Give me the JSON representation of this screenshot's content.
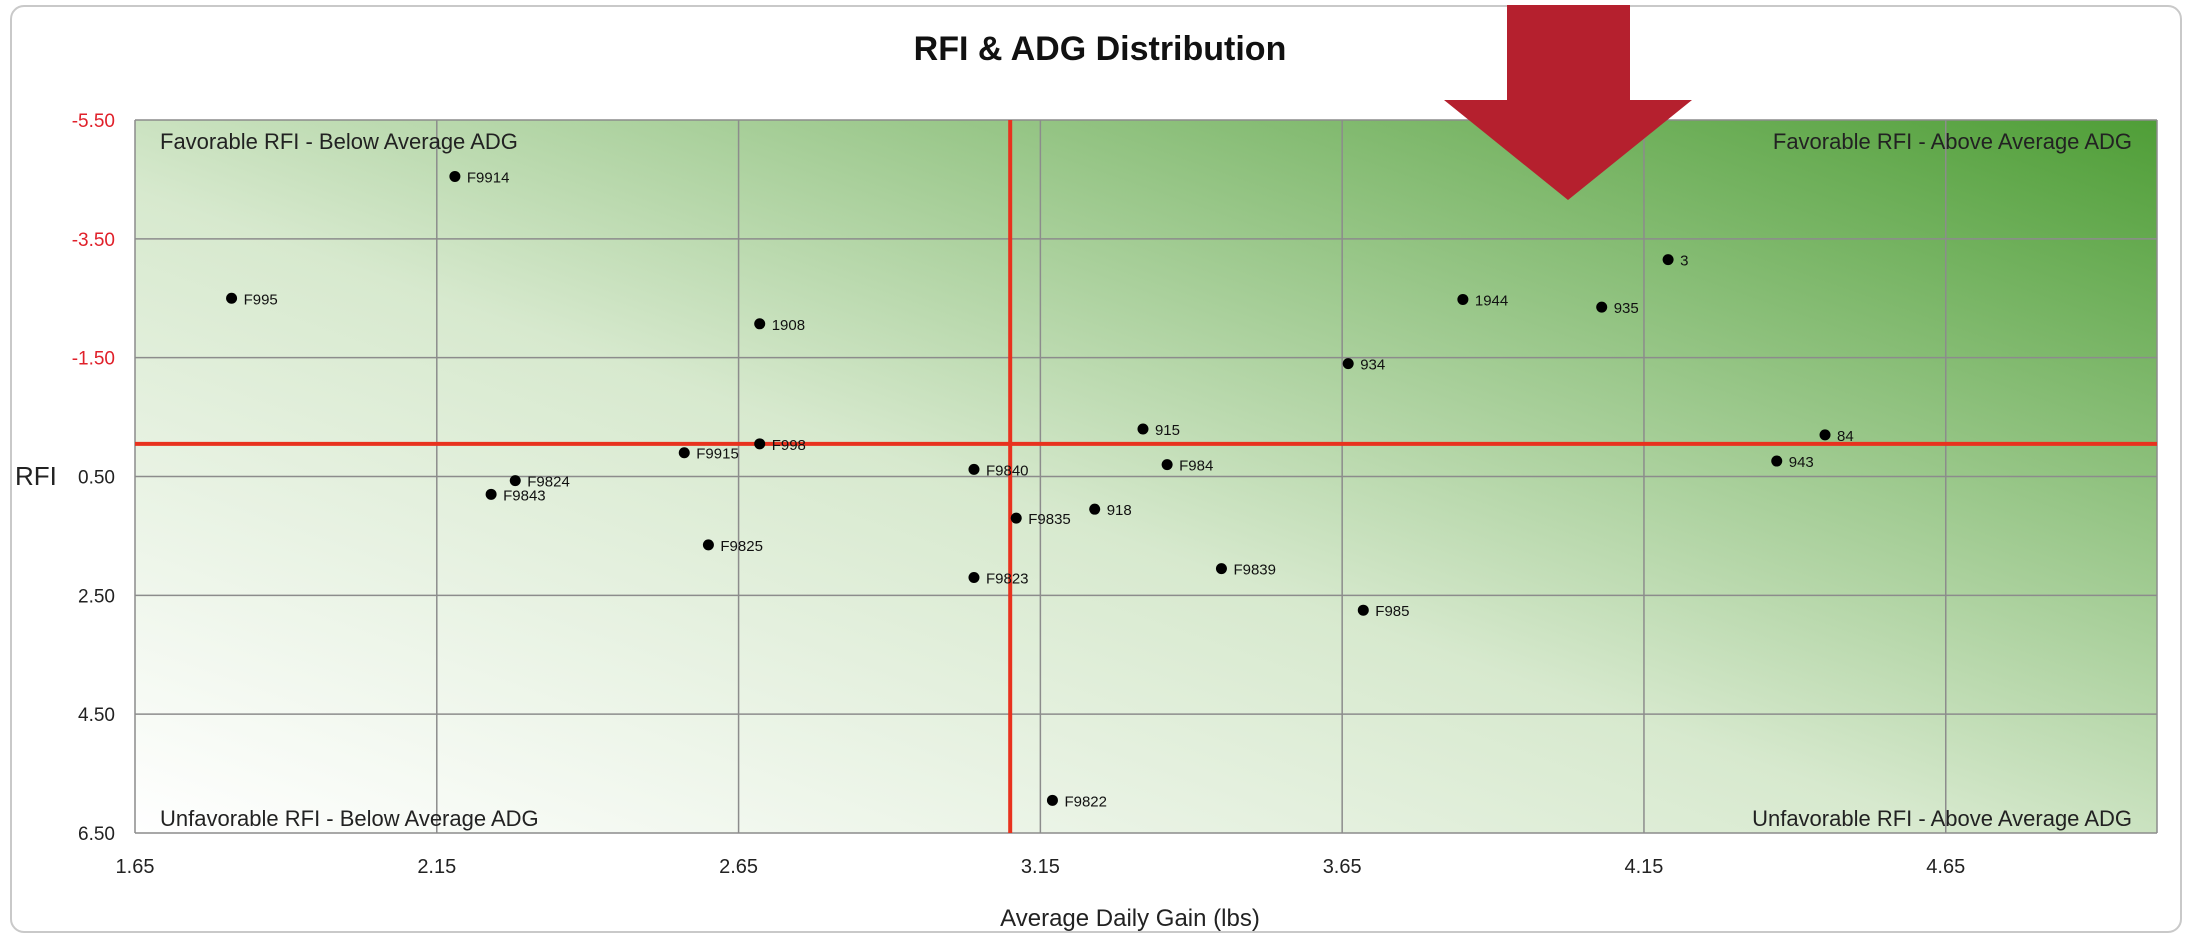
{
  "chart_data": {
    "type": "scatter",
    "title": "RFI & ADG Distribution",
    "xlabel": "Average Daily Gain (lbs)",
    "ylabel": "RFI",
    "xlim": [
      1.65,
      5.0
    ],
    "ylim": [
      -5.5,
      6.5
    ],
    "y_inverted": true,
    "x_ticks": [
      "1.65",
      "2.15",
      "2.65",
      "3.15",
      "3.65",
      "4.15",
      "4.65"
    ],
    "y_ticks": [
      "-5.50",
      "-3.50",
      "-1.50",
      "0.50",
      "2.50",
      "4.50",
      "6.50"
    ],
    "grid": true,
    "reference_lines": {
      "x": 3.1,
      "y": -0.05
    },
    "quadrant_labels": {
      "top_left": "Favorable RFI - Below Average ADG",
      "top_right": "Favorable RFI - Above Average ADG",
      "bottom_left": "Unfavorable RFI - Below Average ADG",
      "bottom_right": "Unfavorable RFI - Above Average ADG"
    },
    "points": [
      {
        "label": "F9914",
        "x": 2.18,
        "y": -4.55
      },
      {
        "label": "F995",
        "x": 1.81,
        "y": -2.5
      },
      {
        "label": "1908",
        "x": 2.685,
        "y": -2.07
      },
      {
        "label": "3",
        "x": 4.19,
        "y": -3.15
      },
      {
        "label": "1944",
        "x": 3.85,
        "y": -2.48
      },
      {
        "label": "935",
        "x": 4.08,
        "y": -2.35
      },
      {
        "label": "934",
        "x": 3.66,
        "y": -1.4
      },
      {
        "label": "915",
        "x": 3.32,
        "y": -0.3
      },
      {
        "label": "84",
        "x": 4.45,
        "y": -0.2
      },
      {
        "label": "943",
        "x": 4.37,
        "y": 0.24
      },
      {
        "label": "F9915",
        "x": 2.56,
        "y": 0.1
      },
      {
        "label": "F998",
        "x": 2.685,
        "y": -0.05
      },
      {
        "label": "F9840",
        "x": 3.04,
        "y": 0.38
      },
      {
        "label": "F984",
        "x": 3.36,
        "y": 0.3
      },
      {
        "label": "F9824",
        "x": 2.28,
        "y": 0.57
      },
      {
        "label": "F9843",
        "x": 2.24,
        "y": 0.8
      },
      {
        "label": "F9835",
        "x": 3.11,
        "y": 1.2
      },
      {
        "label": "918",
        "x": 3.24,
        "y": 1.05
      },
      {
        "label": "F9825",
        "x": 2.6,
        "y": 1.65
      },
      {
        "label": "F9839",
        "x": 3.45,
        "y": 2.05
      },
      {
        "label": "F9823",
        "x": 3.04,
        "y": 2.2
      },
      {
        "label": "F985",
        "x": 3.685,
        "y": 2.75
      },
      {
        "label": "F9822",
        "x": 3.17,
        "y": 5.95
      }
    ]
  },
  "colors": {
    "reference_line": "#e8321e",
    "arrow": "#b5202e",
    "tick_labels_y": "#e0202a",
    "point": "#000000",
    "gradient_dark": "#4f9e37",
    "gradient_light": "#ffffff"
  },
  "annotations": [
    "down-arrow"
  ]
}
